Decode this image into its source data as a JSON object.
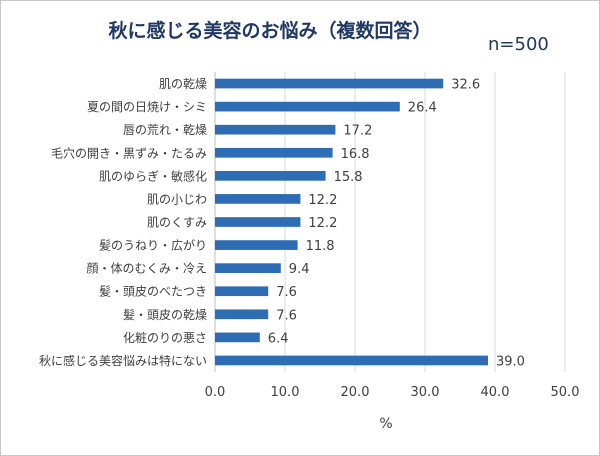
{
  "chart_data": {
    "type": "bar",
    "orientation": "horizontal",
    "title": "秋に感じる美容のお悩み（複数回答）",
    "subtitle": "n=500",
    "xlabel": "%",
    "ylabel": "",
    "xlim": [
      0,
      50
    ],
    "x_ticks": [
      "0.0",
      "10.0",
      "20.0",
      "30.0",
      "40.0",
      "50.0"
    ],
    "grid": true,
    "bar_color": "#2e6db4",
    "categories": [
      "肌の乾燥",
      "夏の間の日焼け・シミ",
      "唇の荒れ・乾燥",
      "毛穴の開き・黒ずみ・たるみ",
      "肌のゆらぎ・敏感化",
      "肌の小じわ",
      "肌のくすみ",
      "髪のうねり・広がり",
      "顔・体のむくみ・冷え",
      "髪・頭皮のべたつき",
      "髪・頭皮の乾燥",
      "化粧のりの悪さ",
      "秋に感じる美容悩みは特にない"
    ],
    "values": [
      32.6,
      26.4,
      17.2,
      16.8,
      15.8,
      12.2,
      12.2,
      11.8,
      9.4,
      7.6,
      7.6,
      6.4,
      39.0
    ],
    "value_labels": [
      "32.6",
      "26.4",
      "17.2",
      "16.8",
      "15.8",
      "12.2",
      "12.2",
      "11.8",
      "9.4",
      "7.6",
      "7.6",
      "6.4",
      "39.0"
    ]
  }
}
